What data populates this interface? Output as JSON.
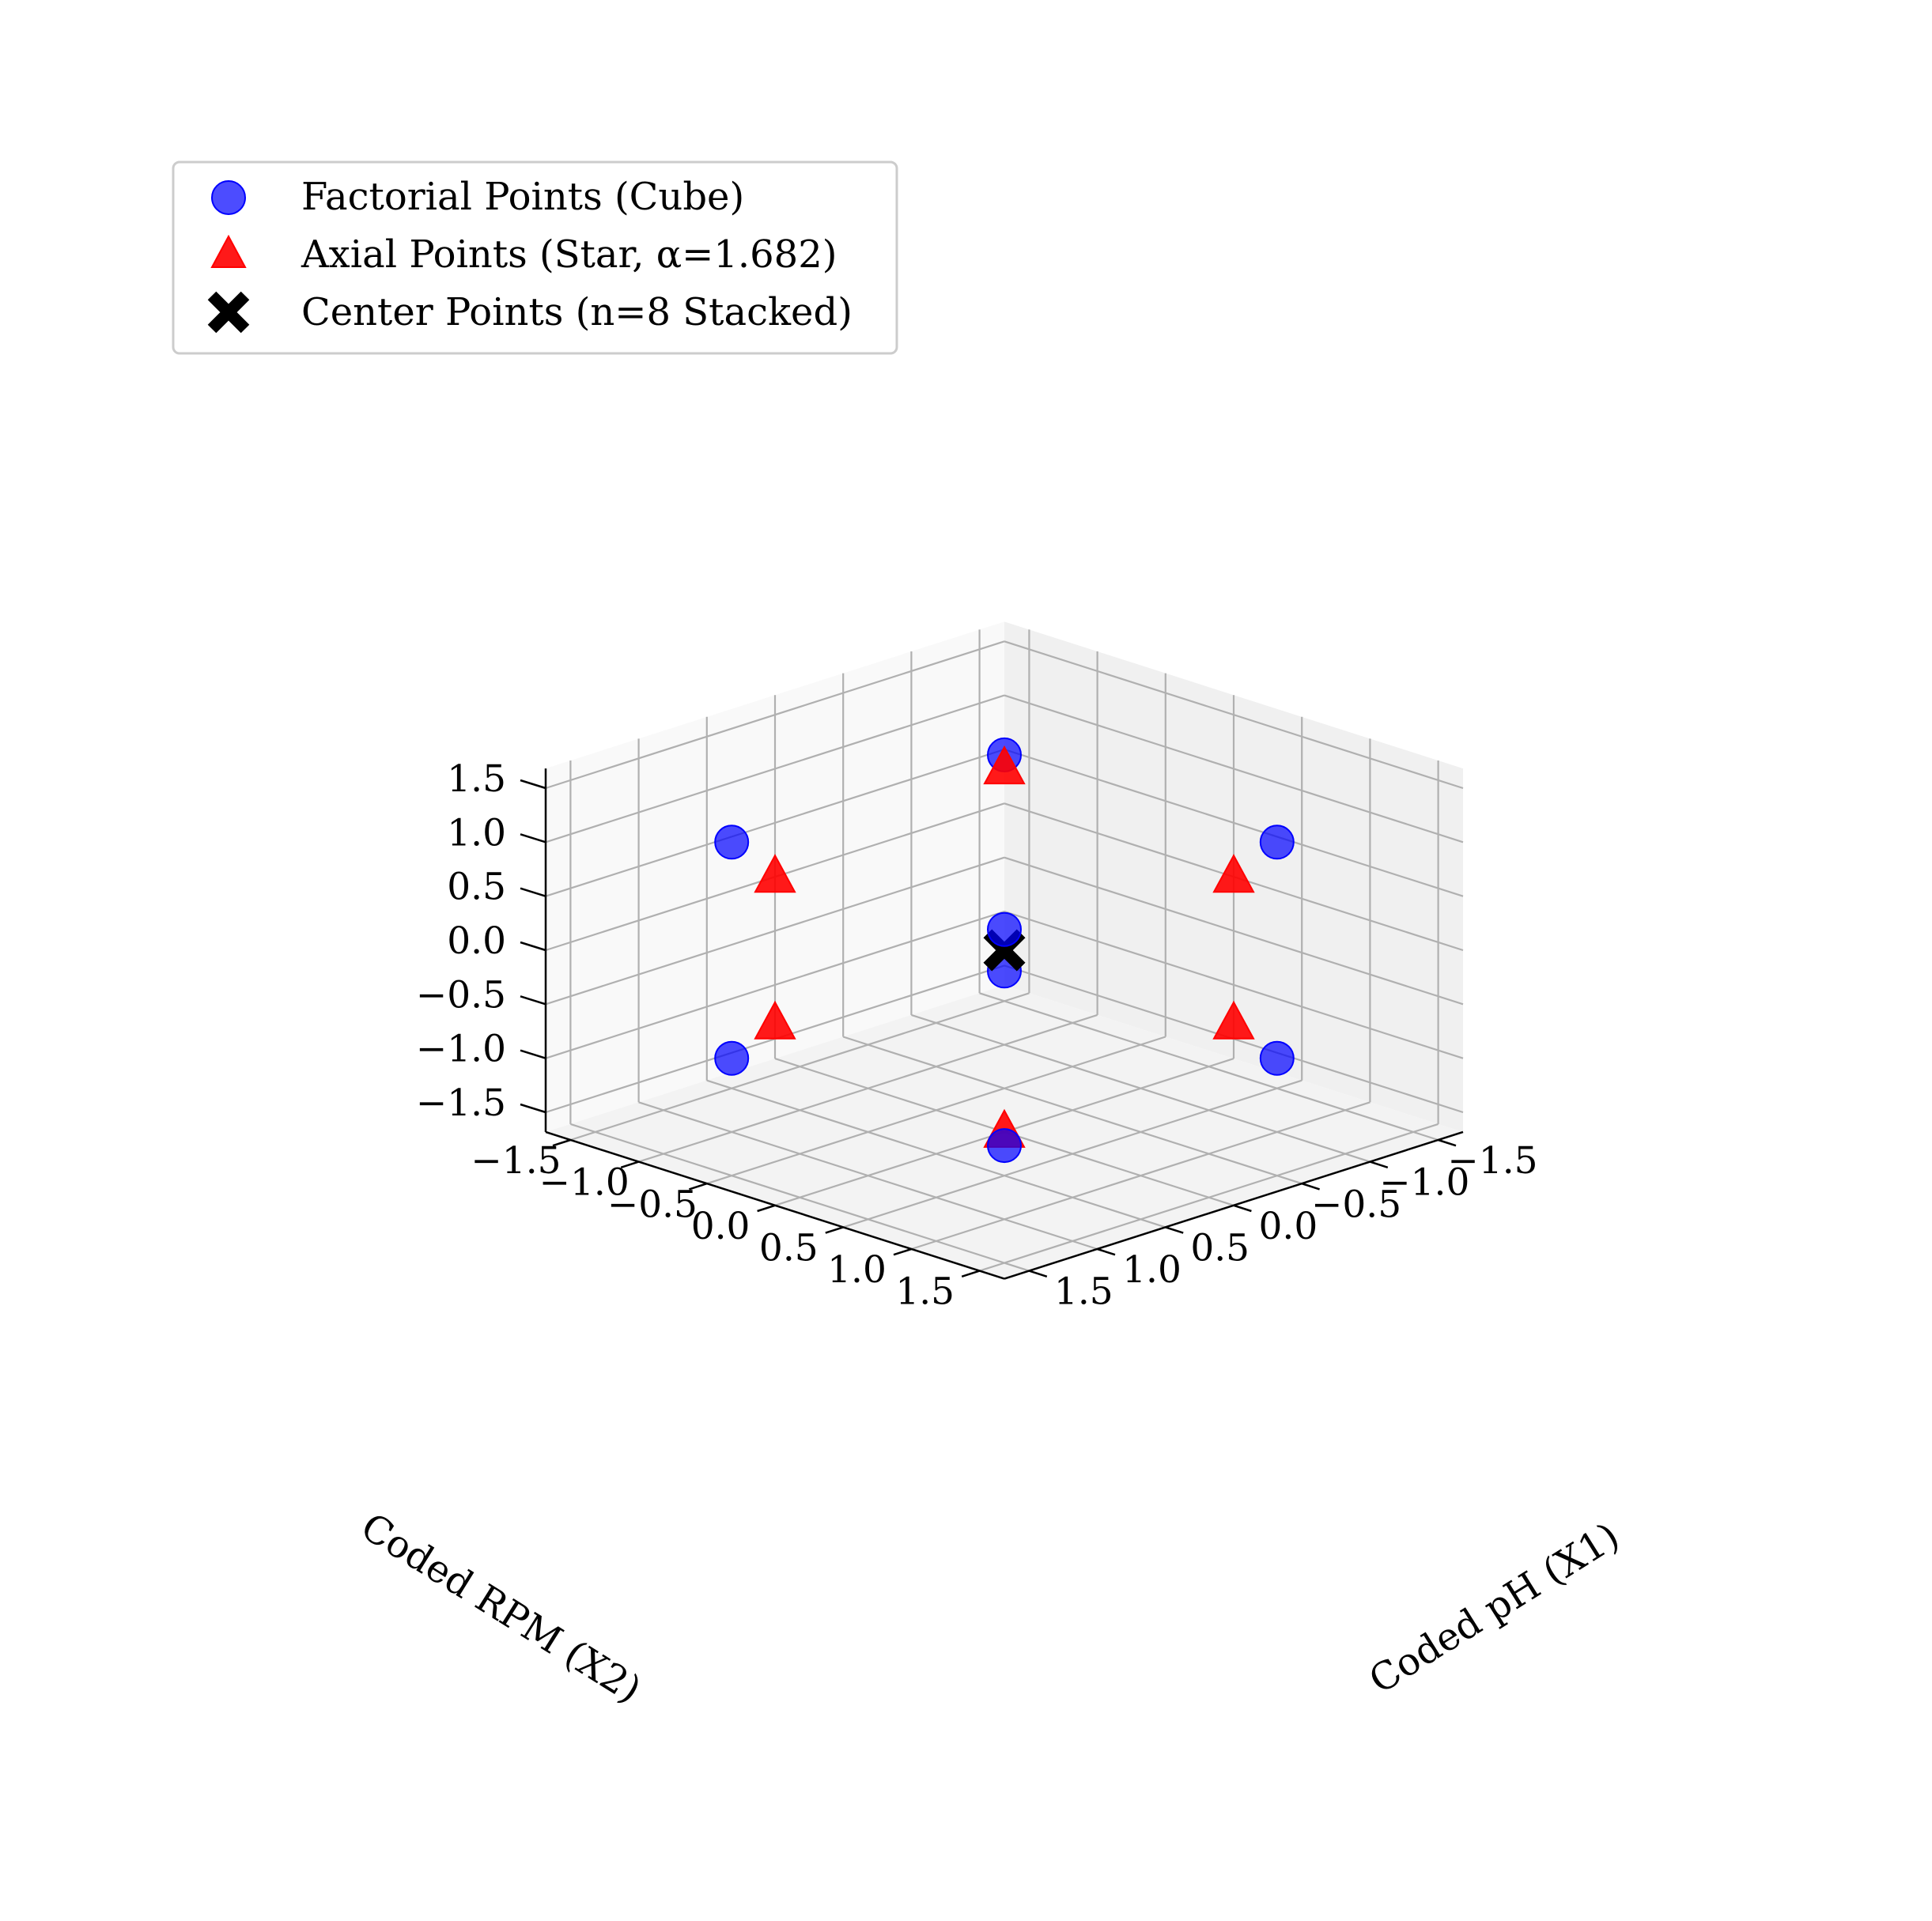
{
  "chart_data": {
    "type": "scatter",
    "projection": "3d",
    "xlabel": "Coded pH (X1)",
    "ylabel": "Coded RPM (X2)",
    "zlabel": "",
    "xlim": [
      -1.682,
      1.682
    ],
    "ylim": [
      -1.682,
      1.682
    ],
    "zlim": [
      -1.682,
      1.682
    ],
    "ticks": [
      -1.5,
      -1.0,
      -0.5,
      0.0,
      0.5,
      1.0,
      1.5
    ],
    "tick_labels": [
      "−1.5",
      "−1.0",
      "−0.5",
      "0.0",
      "0.5",
      "1.0",
      "1.5"
    ],
    "grid": true,
    "legend_position": "top-left",
    "series": [
      {
        "name": "Factorial Points (Cube)",
        "marker": "circle",
        "color": "#0000ff",
        "points": [
          [
            -1,
            -1,
            -1
          ],
          [
            1,
            -1,
            -1
          ],
          [
            -1,
            1,
            -1
          ],
          [
            1,
            1,
            -1
          ],
          [
            -1,
            -1,
            1
          ],
          [
            1,
            -1,
            1
          ],
          [
            -1,
            1,
            1
          ],
          [
            1,
            1,
            1
          ]
        ]
      },
      {
        "name": "Axial Points (Star, α=1.682)",
        "marker": "triangle",
        "color": "#ff0000",
        "points": [
          [
            -1.682,
            0,
            0
          ],
          [
            1.682,
            0,
            0
          ],
          [
            0,
            -1.682,
            0
          ],
          [
            0,
            1.682,
            0
          ],
          [
            0,
            0,
            -1.682
          ],
          [
            0,
            0,
            1.682
          ]
        ]
      },
      {
        "name": "Center Points (n=8 Stacked)",
        "marker": "x",
        "color": "#000000",
        "points": [
          [
            0,
            0,
            0
          ],
          [
            0,
            0,
            0
          ],
          [
            0,
            0,
            0
          ],
          [
            0,
            0,
            0
          ],
          [
            0,
            0,
            0
          ],
          [
            0,
            0,
            0
          ],
          [
            0,
            0,
            0
          ],
          [
            0,
            0,
            0
          ]
        ]
      }
    ]
  }
}
